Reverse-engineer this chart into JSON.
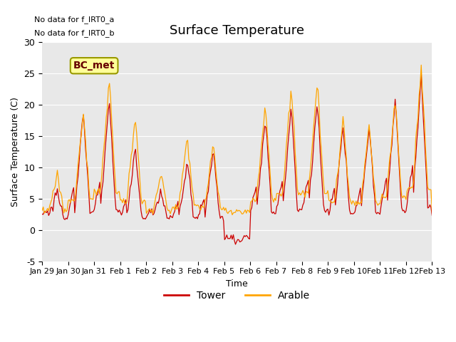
{
  "title": "Surface Temperature",
  "xlabel": "Time",
  "ylabel": "Surface Temperature (C)",
  "ylim": [
    -5,
    30
  ],
  "xlim_days": 15,
  "bg_color": "#e8e8e8",
  "plot_bg_color": "#e8e8e8",
  "tower_color": "#cc0000",
  "arable_color": "#ffa500",
  "text_annotations": [
    "No data for f_IRT0_a",
    "No data for f_IRT0_b"
  ],
  "legend_label_tower": "Tower",
  "legend_label_arable": "Arable",
  "bc_met_label": "BC_met",
  "bc_met_bg": "#ffff99",
  "bc_met_border": "#999900",
  "yticks": [
    -5,
    0,
    5,
    10,
    15,
    20,
    25,
    30
  ],
  "xtick_labels": [
    "Jan 29",
    "Jan 30",
    "Jan 31",
    "Feb 1",
    "Feb 2",
    "Feb 3",
    "Feb 4",
    "Feb 5",
    "Feb 6",
    "Feb 7",
    "Feb 8",
    "Feb 9",
    "Feb 10",
    "Feb 11",
    "Feb 12",
    "Feb 13"
  ],
  "grid_color": "#ffffff",
  "font_size": 9,
  "title_font_size": 13
}
